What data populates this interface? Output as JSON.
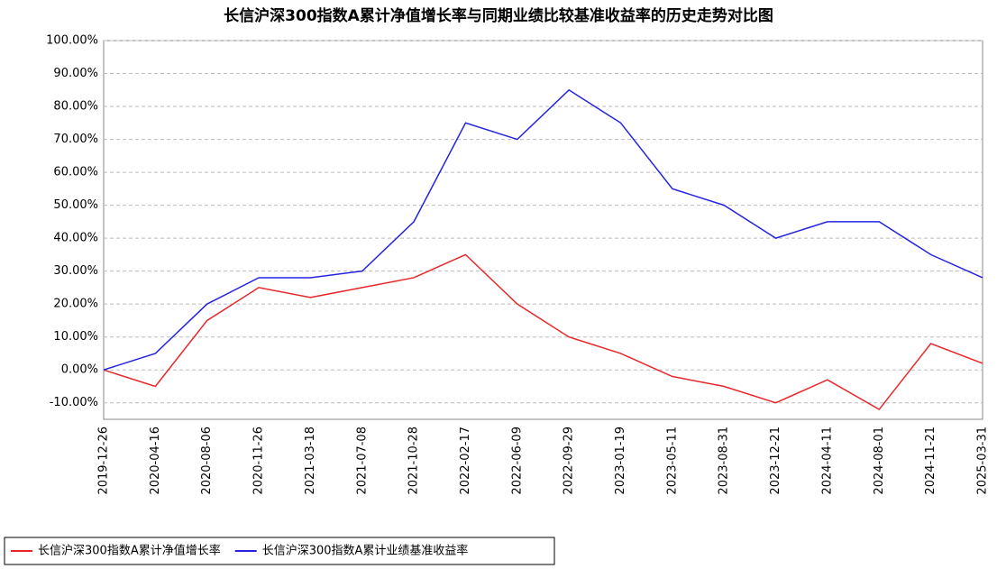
{
  "chart_data": {
    "type": "line",
    "title": "长信沪深300指数A累计净值增长率与同期业绩比较基准收益率的历史走势对比图",
    "categories": [
      "2019-12-26",
      "2020-04-16",
      "2020-08-06",
      "2020-11-26",
      "2021-03-18",
      "2021-07-08",
      "2021-10-28",
      "2022-02-17",
      "2022-06-09",
      "2022-09-29",
      "2023-01-19",
      "2023-05-11",
      "2023-08-31",
      "2023-12-21",
      "2024-04-11",
      "2024-08-01",
      "2024-11-21",
      "2025-03-31"
    ],
    "series": [
      {
        "name": "长信沪深300指数A累计净值增长率",
        "color": "#e8262a",
        "values": [
          0,
          -5,
          15,
          25,
          22,
          25,
          28,
          35,
          20,
          10,
          5,
          -2,
          -5,
          -10,
          -3,
          -12,
          8,
          2
        ]
      },
      {
        "name": "长信沪深300指数A累计业绩基准收益率",
        "color": "#2424e0",
        "values": [
          0,
          5,
          20,
          28,
          28,
          30,
          45,
          75,
          70,
          85,
          75,
          55,
          50,
          40,
          45,
          45,
          35,
          28
        ]
      }
    ],
    "ylim": [
      -15,
      100
    ],
    "yticks": [
      {
        "value": -10,
        "label": "-10.00%"
      },
      {
        "value": 0,
        "label": "0.00%"
      },
      {
        "value": 10,
        "label": "10.00%"
      },
      {
        "value": 20,
        "label": "20.00%"
      },
      {
        "value": 30,
        "label": "30.00%"
      },
      {
        "value": 40,
        "label": "40.00%"
      },
      {
        "value": 50,
        "label": "50.00%"
      },
      {
        "value": 60,
        "label": "60.00%"
      },
      {
        "value": 70,
        "label": "70.00%"
      },
      {
        "value": 80,
        "label": "80.00%"
      },
      {
        "value": 90,
        "label": "90.00%"
      },
      {
        "value": 100,
        "label": "100.00%"
      }
    ],
    "grid": true
  }
}
